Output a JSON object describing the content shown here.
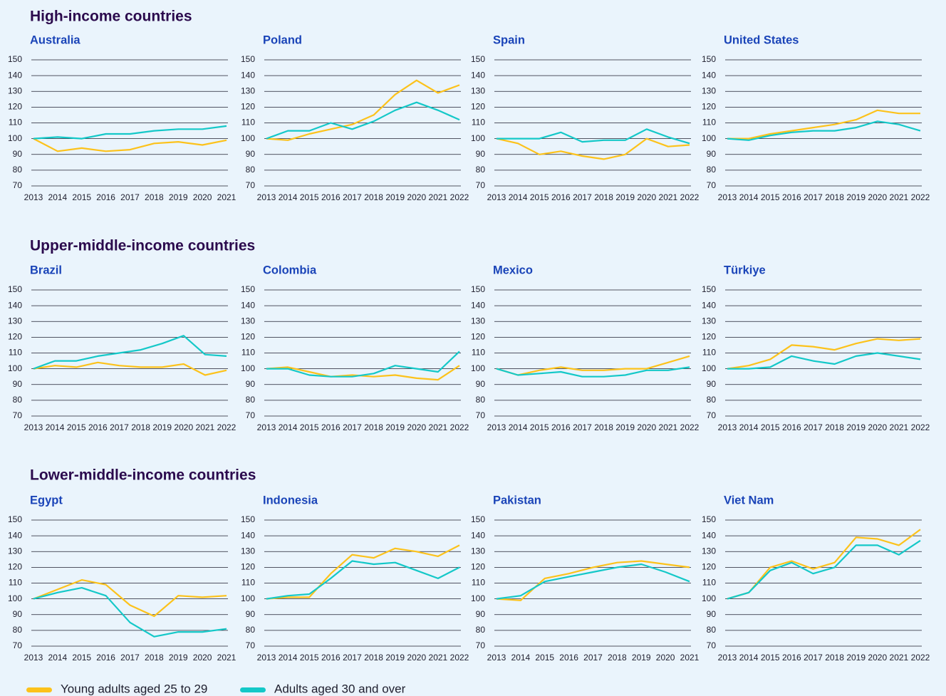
{
  "groups": [
    "High-income countries",
    "Upper-middle-income countries",
    "Lower-middle-income countries"
  ],
  "chart_data": [
    {
      "type": "line",
      "title": "Australia",
      "categories": [
        "2013",
        "2014",
        "2015",
        "2016",
        "2017",
        "2018",
        "2019",
        "2020",
        "2021"
      ],
      "ylim": [
        70,
        150
      ],
      "yticks": [
        70,
        80,
        90,
        100,
        110,
        120,
        130,
        140,
        150
      ],
      "series": [
        {
          "name": "Young adults aged 25 to 29",
          "color": "#fcc21b",
          "values": [
            100,
            92,
            94,
            92,
            93,
            97,
            98,
            96,
            99
          ]
        },
        {
          "name": "Adults aged 30 and over",
          "color": "#14c8c8",
          "values": [
            100,
            101,
            100,
            103,
            103,
            105,
            106,
            106,
            108
          ]
        }
      ]
    },
    {
      "type": "line",
      "title": "Poland",
      "categories": [
        "2013",
        "2014",
        "2015",
        "2016",
        "2017",
        "2018",
        "2019",
        "2020",
        "2021",
        "2022"
      ],
      "ylim": [
        70,
        150
      ],
      "yticks": [
        70,
        80,
        90,
        100,
        110,
        120,
        130,
        140,
        150
      ],
      "series": [
        {
          "name": "Young adults aged 25 to 29",
          "color": "#fcc21b",
          "values": [
            100,
            99,
            103,
            106,
            109,
            115,
            128,
            137,
            129,
            134
          ]
        },
        {
          "name": "Adults aged 30 and over",
          "color": "#14c8c8",
          "values": [
            100,
            105,
            105,
            110,
            106,
            111,
            118,
            123,
            118,
            112
          ]
        }
      ]
    },
    {
      "type": "line",
      "title": "Spain",
      "categories": [
        "2013",
        "2014",
        "2015",
        "2016",
        "2017",
        "2018",
        "2019",
        "2020",
        "2021",
        "2022"
      ],
      "ylim": [
        70,
        150
      ],
      "yticks": [
        70,
        80,
        90,
        100,
        110,
        120,
        130,
        140,
        150
      ],
      "series": [
        {
          "name": "Young adults aged 25 to 29",
          "color": "#fcc21b",
          "values": [
            100,
            97,
            90,
            92,
            89,
            87,
            90,
            100,
            95,
            96
          ]
        },
        {
          "name": "Adults aged 30 and over",
          "color": "#14c8c8",
          "values": [
            100,
            100,
            100,
            104,
            98,
            99,
            99,
            106,
            101,
            97
          ]
        }
      ]
    },
    {
      "type": "line",
      "title": "United States",
      "categories": [
        "2013",
        "2014",
        "2015",
        "2016",
        "2017",
        "2018",
        "2019",
        "2020",
        "2021",
        "2022"
      ],
      "ylim": [
        70,
        150
      ],
      "yticks": [
        70,
        80,
        90,
        100,
        110,
        120,
        130,
        140,
        150
      ],
      "series": [
        {
          "name": "Young adults aged 25 to 29",
          "color": "#fcc21b",
          "values": [
            100,
            100,
            103,
            105,
            107,
            109,
            112,
            118,
            116,
            116
          ]
        },
        {
          "name": "Adults aged 30 and over",
          "color": "#14c8c8",
          "values": [
            100,
            99,
            102,
            104,
            105,
            105,
            107,
            111,
            109,
            105
          ]
        }
      ]
    },
    {
      "type": "line",
      "title": "Brazil",
      "categories": [
        "2013",
        "2014",
        "2015",
        "2016",
        "2017",
        "2018",
        "2019",
        "2020",
        "2021",
        "2022"
      ],
      "ylim": [
        70,
        150
      ],
      "yticks": [
        70,
        80,
        90,
        100,
        110,
        120,
        130,
        140,
        150
      ],
      "series": [
        {
          "name": "Young adults aged 25 to 29",
          "color": "#fcc21b",
          "values": [
            100,
            102,
            101,
            104,
            102,
            101,
            101,
            103,
            96,
            99
          ]
        },
        {
          "name": "Adults aged 30 and over",
          "color": "#14c8c8",
          "values": [
            100,
            105,
            105,
            108,
            110,
            112,
            116,
            121,
            109,
            108
          ]
        }
      ]
    },
    {
      "type": "line",
      "title": "Colombia",
      "categories": [
        "2013",
        "2014",
        "2015",
        "2016",
        "2017",
        "2018",
        "2019",
        "2020",
        "2021",
        "2022"
      ],
      "ylim": [
        70,
        150
      ],
      "yticks": [
        70,
        80,
        90,
        100,
        110,
        120,
        130,
        140,
        150
      ],
      "series": [
        {
          "name": "Young adults aged 25 to 29",
          "color": "#fcc21b",
          "values": [
            100,
            101,
            98,
            95,
            96,
            95,
            96,
            94,
            93,
            102
          ]
        },
        {
          "name": "Adults aged 30 and over",
          "color": "#14c8c8",
          "values": [
            100,
            100,
            96,
            95,
            95,
            97,
            102,
            100,
            98,
            111
          ]
        }
      ]
    },
    {
      "type": "line",
      "title": "Mexico",
      "categories": [
        "2013",
        "2014",
        "2015",
        "2016",
        "2017",
        "2018",
        "2019",
        "2020",
        "2021",
        "2022"
      ],
      "ylim": [
        70,
        150
      ],
      "yticks": [
        70,
        80,
        90,
        100,
        110,
        120,
        130,
        140,
        150
      ],
      "series": [
        {
          "name": "Young adults aged 25 to 29",
          "color": "#fcc21b",
          "values": [
            100,
            96,
            99,
            101,
            99,
            99,
            100,
            100,
            104,
            108
          ]
        },
        {
          "name": "Adults aged 30 and over",
          "color": "#14c8c8",
          "values": [
            100,
            96,
            97,
            98,
            95,
            95,
            96,
            99,
            99,
            101
          ]
        }
      ]
    },
    {
      "type": "line",
      "title": "Türkiye",
      "categories": [
        "2013",
        "2014",
        "2015",
        "2016",
        "2017",
        "2018",
        "2019",
        "2020",
        "2021",
        "2022"
      ],
      "ylim": [
        70,
        150
      ],
      "yticks": [
        70,
        80,
        90,
        100,
        110,
        120,
        130,
        140,
        150
      ],
      "series": [
        {
          "name": "Young adults aged 25 to 29",
          "color": "#fcc21b",
          "values": [
            100,
            102,
            106,
            115,
            114,
            112,
            116,
            119,
            118,
            119
          ]
        },
        {
          "name": "Adults aged 30 and over",
          "color": "#14c8c8",
          "values": [
            100,
            100,
            101,
            108,
            105,
            103,
            108,
            110,
            108,
            106
          ]
        }
      ]
    },
    {
      "type": "line",
      "title": "Egypt",
      "categories": [
        "2013",
        "2014",
        "2015",
        "2016",
        "2017",
        "2018",
        "2019",
        "2020",
        "2021"
      ],
      "ylim": [
        70,
        150
      ],
      "yticks": [
        70,
        80,
        90,
        100,
        110,
        120,
        130,
        140,
        150
      ],
      "series": [
        {
          "name": "Young adults aged 25 to 29",
          "color": "#fcc21b",
          "values": [
            100,
            106,
            112,
            109,
            96,
            89,
            102,
            101,
            102
          ]
        },
        {
          "name": "Adults aged 30 and over",
          "color": "#14c8c8",
          "values": [
            100,
            104,
            107,
            102,
            85,
            76,
            79,
            79,
            81
          ]
        }
      ]
    },
    {
      "type": "line",
      "title": "Indonesia",
      "categories": [
        "2013",
        "2014",
        "2015",
        "2016",
        "2017",
        "2018",
        "2019",
        "2020",
        "2021",
        "2022"
      ],
      "ylim": [
        70,
        150
      ],
      "yticks": [
        70,
        80,
        90,
        100,
        110,
        120,
        130,
        140,
        150
      ],
      "series": [
        {
          "name": "Young adults aged 25 to 29",
          "color": "#fcc21b",
          "values": [
            100,
            101,
            101,
            116,
            128,
            126,
            132,
            130,
            127,
            134
          ]
        },
        {
          "name": "Adults aged 30 and over",
          "color": "#14c8c8",
          "values": [
            100,
            102,
            103,
            113,
            124,
            122,
            123,
            118,
            113,
            120
          ]
        }
      ]
    },
    {
      "type": "line",
      "title": "Pakistan",
      "categories": [
        "2013",
        "2014",
        "2015",
        "2016",
        "2017",
        "2018",
        "2019",
        "2020",
        "2021"
      ],
      "ylim": [
        70,
        150
      ],
      "yticks": [
        70,
        80,
        90,
        100,
        110,
        120,
        130,
        140,
        150
      ],
      "series": [
        {
          "name": "Young adults aged 25 to 29",
          "color": "#fcc21b",
          "values": [
            100,
            99,
            113,
            116,
            120,
            123,
            124,
            122,
            120
          ]
        },
        {
          "name": "Adults aged 30 and over",
          "color": "#14c8c8",
          "values": [
            100,
            102,
            111,
            114,
            117,
            120,
            122,
            117,
            111
          ]
        }
      ]
    },
    {
      "type": "line",
      "title": "Viet Nam",
      "categories": [
        "2013",
        "2014",
        "2015",
        "2016",
        "2017",
        "2018",
        "2019",
        "2020",
        "2021",
        "2022"
      ],
      "ylim": [
        70,
        150
      ],
      "yticks": [
        70,
        80,
        90,
        100,
        110,
        120,
        130,
        140,
        150
      ],
      "series": [
        {
          "name": "Young adults aged 25 to 29",
          "color": "#fcc21b",
          "values": [
            100,
            104,
            120,
            124,
            119,
            123,
            139,
            138,
            134,
            144
          ]
        },
        {
          "name": "Adults aged 30 and over",
          "color": "#14c8c8",
          "values": [
            100,
            104,
            118,
            123,
            116,
            120,
            134,
            134,
            128,
            137
          ]
        }
      ]
    }
  ]
}
